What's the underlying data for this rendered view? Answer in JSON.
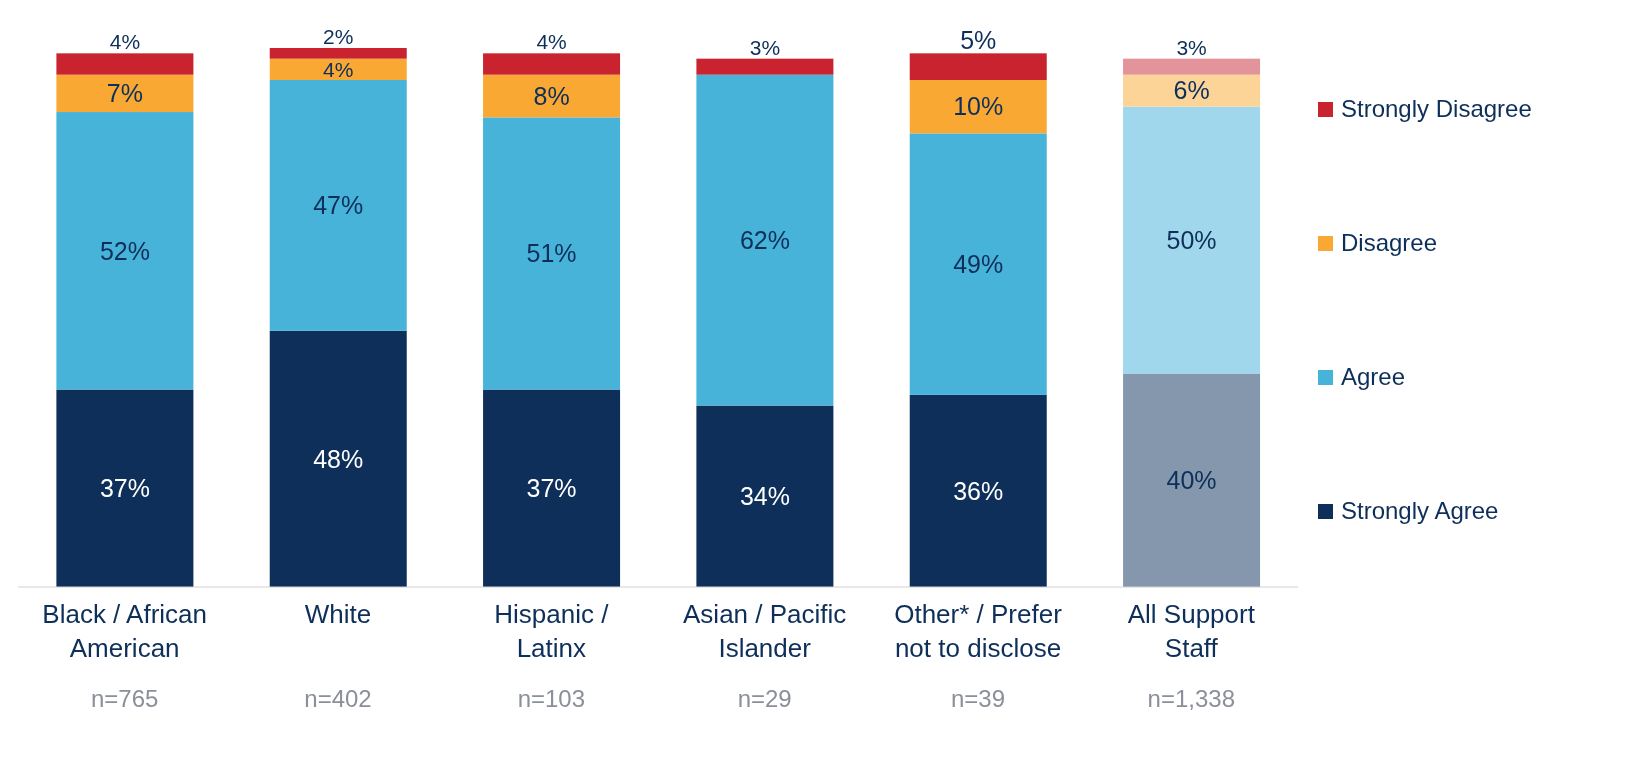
{
  "chart_data": {
    "type": "bar",
    "stacked": true,
    "legend": "right",
    "categories": [
      "Black / African American",
      "White",
      "Hispanic / Latinx",
      "Asian / Pacific Islander",
      "Other* / Prefer not to disclose",
      "All Support Staff"
    ],
    "series": [
      {
        "name": "Strongly Agree",
        "color": "#0d2f5a",
        "colors": [
          "#0d2f5a",
          "#0d2f5a",
          "#0d2f5a",
          "#0d2f5a",
          "#0d2f5a",
          "#8497ad"
        ],
        "values": [
          37,
          48,
          37,
          34,
          36,
          40
        ],
        "value_labels": [
          "37%",
          "48%",
          "37%",
          "34%",
          "36%",
          "40%"
        ]
      },
      {
        "name": "Agree",
        "color": "#48b3d9",
        "colors": [
          "#48b3d9",
          "#48b3d9",
          "#48b3d9",
          "#48b3d9",
          "#48b3d9",
          "#a1d7ec"
        ],
        "values": [
          52,
          47,
          51,
          62,
          49,
          50
        ],
        "value_labels": [
          "52%",
          "47%",
          "51%",
          "62%",
          "49%",
          "50%"
        ]
      },
      {
        "name": "Disagree",
        "color": "#f9a933",
        "colors": [
          "#f9a933",
          "#f9a933",
          "#f9a933",
          "#f9a933",
          "#f9a933",
          "#fdd497"
        ],
        "values": [
          7,
          4,
          8,
          null,
          10,
          6
        ],
        "value_labels": [
          "7%",
          "4%",
          "8%",
          null,
          "10%",
          "6%"
        ]
      },
      {
        "name": "Strongly Disagree",
        "color": "#c8232f",
        "colors": [
          "#c8232f",
          "#c8232f",
          "#c8232f",
          "#c8232f",
          "#c8232f",
          "#e3939a"
        ],
        "values": [
          4,
          2,
          4,
          3,
          5,
          3
        ],
        "value_labels": [
          "4%",
          "2%",
          "4%",
          "3%",
          "5%",
          "3%"
        ]
      }
    ],
    "annotations": [
      "n=765",
      "n=402",
      "n=103",
      "n=29",
      "n=39",
      "n=1,338"
    ]
  }
}
